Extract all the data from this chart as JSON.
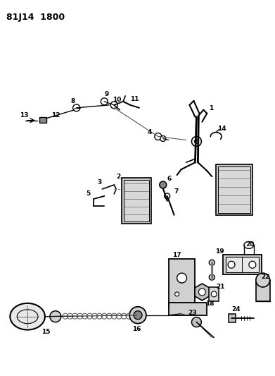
{
  "title": "81J14  1800",
  "bg": "#ffffff",
  "lc": "#000000",
  "fig_w": 3.91,
  "fig_h": 5.33,
  "dpi": 100
}
